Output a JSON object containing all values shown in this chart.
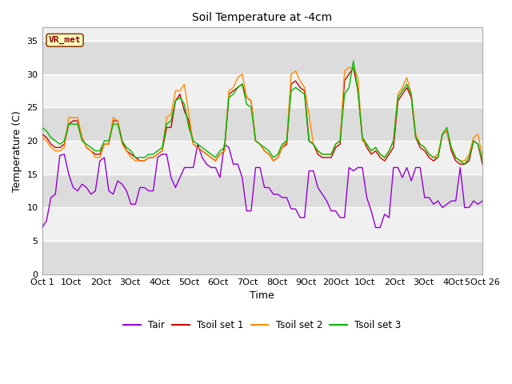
{
  "title": "Soil Temperature at -4cm",
  "xlabel": "Time",
  "ylabel": "Temperature (C)",
  "ylim": [
    0,
    37
  ],
  "yticks": [
    0,
    5,
    10,
    15,
    20,
    25,
    30,
    35
  ],
  "xtick_labels": [
    "Oct 1",
    "1Oct",
    "2Oct",
    "3Oct",
    "4Oct",
    "5Oct",
    "6Oct",
    "7Oct",
    "8Oct",
    "9Oct",
    "20Oct",
    "1Oct",
    "2Oct",
    "3Oct",
    "4Oct",
    "5Oct 26"
  ],
  "annotation_text": "VR_met",
  "annotation_bg": "#FFFFC0",
  "annotation_border": "#8B4513",
  "annotation_text_color": "#8B0000",
  "color_tair": "#9400D3",
  "color_tsoil1": "#CC0000",
  "color_tsoil2": "#FF8C00",
  "color_tsoil3": "#00BB00",
  "legend_labels": [
    "Tair",
    "Tsoil set 1",
    "Tsoil set 2",
    "Tsoil set 3"
  ],
  "bg_light": "#F0F0F0",
  "bg_dark": "#DCDCDC",
  "fig_bg": "#FFFFFF",
  "band_ranges": [
    [
      0,
      5
    ],
    [
      10,
      15
    ],
    [
      20,
      25
    ],
    [
      30,
      35
    ]
  ],
  "tair": [
    7.0,
    8.0,
    11.5,
    12.0,
    17.8,
    18.0,
    15.0,
    13.0,
    12.5,
    13.5,
    13.0,
    12.0,
    12.5,
    17.0,
    17.5,
    12.5,
    12.0,
    14.0,
    13.5,
    12.5,
    10.5,
    10.5,
    13.0,
    13.0,
    12.5,
    12.5,
    17.5,
    18.0,
    18.0,
    14.5,
    13.0,
    14.5,
    16.0,
    16.0,
    16.0,
    19.5,
    17.5,
    16.5,
    16.0,
    16.0,
    14.5,
    19.5,
    19.0,
    16.5,
    16.5,
    14.5,
    9.5,
    9.5,
    16.0,
    16.0,
    13.0,
    13.0,
    12.0,
    12.0,
    11.5,
    11.5,
    9.8,
    9.8,
    8.5,
    8.5,
    15.5,
    15.5,
    13.0,
    12.0,
    11.0,
    9.5,
    9.5,
    8.5,
    8.5,
    16.0,
    15.5,
    16.0,
    16.0,
    11.5,
    9.5,
    7.0,
    7.0,
    9.0,
    8.5,
    16.0,
    16.0,
    14.5,
    16.0,
    14.0,
    16.0,
    16.0,
    11.5,
    11.5,
    10.5,
    11.0,
    10.0,
    10.5,
    11.0,
    11.0,
    16.0,
    10.0,
    10.0,
    11.0,
    10.5,
    11.0
  ],
  "tsoil1": [
    21.0,
    20.5,
    19.5,
    19.0,
    19.0,
    19.5,
    22.5,
    23.0,
    23.0,
    20.5,
    19.0,
    18.5,
    18.0,
    18.0,
    19.5,
    19.5,
    23.0,
    23.0,
    20.0,
    18.5,
    18.0,
    17.5,
    17.0,
    17.0,
    17.5,
    17.5,
    18.0,
    18.5,
    22.0,
    22.0,
    26.0,
    27.0,
    24.5,
    23.0,
    19.5,
    19.0,
    18.5,
    18.0,
    17.5,
    17.0,
    18.0,
    18.5,
    27.0,
    27.5,
    28.0,
    28.5,
    26.5,
    26.0,
    20.0,
    19.5,
    18.5,
    18.0,
    17.0,
    17.5,
    19.0,
    19.5,
    28.5,
    29.0,
    28.0,
    27.5,
    20.0,
    19.5,
    18.0,
    17.5,
    17.5,
    17.5,
    19.0,
    19.5,
    29.0,
    30.0,
    31.0,
    27.5,
    20.5,
    19.0,
    18.0,
    18.5,
    17.5,
    17.0,
    18.0,
    19.0,
    26.0,
    27.0,
    28.0,
    26.5,
    20.5,
    19.0,
    18.5,
    17.5,
    17.0,
    17.5,
    21.0,
    21.5,
    18.5,
    17.0,
    16.5,
    16.5,
    17.0,
    20.0,
    19.5,
    16.5
  ],
  "tsoil2": [
    20.5,
    20.0,
    19.0,
    18.5,
    18.5,
    19.0,
    23.5,
    23.5,
    23.5,
    20.5,
    19.0,
    18.5,
    17.5,
    17.5,
    19.5,
    19.5,
    23.5,
    23.0,
    19.5,
    18.5,
    17.5,
    17.0,
    17.0,
    17.0,
    17.5,
    17.5,
    18.0,
    18.5,
    23.5,
    24.0,
    27.5,
    27.5,
    28.5,
    24.0,
    19.5,
    19.0,
    18.5,
    18.0,
    17.5,
    17.0,
    18.0,
    18.5,
    27.5,
    28.0,
    29.5,
    30.0,
    26.5,
    26.0,
    20.0,
    19.5,
    18.5,
    18.0,
    17.0,
    17.5,
    19.0,
    20.0,
    30.0,
    30.5,
    29.0,
    28.0,
    24.0,
    19.5,
    18.5,
    18.0,
    18.0,
    18.0,
    19.5,
    20.0,
    30.5,
    31.0,
    31.0,
    29.5,
    20.0,
    19.5,
    18.5,
    19.0,
    18.0,
    17.5,
    18.5,
    20.0,
    27.0,
    28.0,
    29.5,
    27.0,
    21.0,
    19.5,
    19.0,
    18.0,
    17.5,
    18.0,
    21.0,
    21.5,
    19.0,
    17.5,
    17.0,
    17.0,
    18.0,
    20.5,
    21.0,
    17.5
  ],
  "tsoil3": [
    22.0,
    21.5,
    20.5,
    20.0,
    19.5,
    20.0,
    22.5,
    22.5,
    22.5,
    20.0,
    19.5,
    19.0,
    18.5,
    18.5,
    20.0,
    20.0,
    22.5,
    22.5,
    20.0,
    19.0,
    18.5,
    17.5,
    17.5,
    17.5,
    18.0,
    18.0,
    18.5,
    19.0,
    22.5,
    23.0,
    26.0,
    26.5,
    25.5,
    22.0,
    20.0,
    19.5,
    19.0,
    18.5,
    18.0,
    17.5,
    18.5,
    19.0,
    26.5,
    27.0,
    28.0,
    28.5,
    25.5,
    25.0,
    20.0,
    19.5,
    19.0,
    18.5,
    17.5,
    18.0,
    19.5,
    20.0,
    27.5,
    28.0,
    27.5,
    27.0,
    20.0,
    19.5,
    18.5,
    18.0,
    18.0,
    18.0,
    19.5,
    20.0,
    27.0,
    28.0,
    32.0,
    27.5,
    20.5,
    19.5,
    18.5,
    19.0,
    18.0,
    17.5,
    18.5,
    20.0,
    26.5,
    27.5,
    28.5,
    27.0,
    20.5,
    19.5,
    19.0,
    18.0,
    17.5,
    17.5,
    21.0,
    22.0,
    19.0,
    17.5,
    17.0,
    16.5,
    17.5,
    20.0,
    19.5,
    17.0
  ]
}
